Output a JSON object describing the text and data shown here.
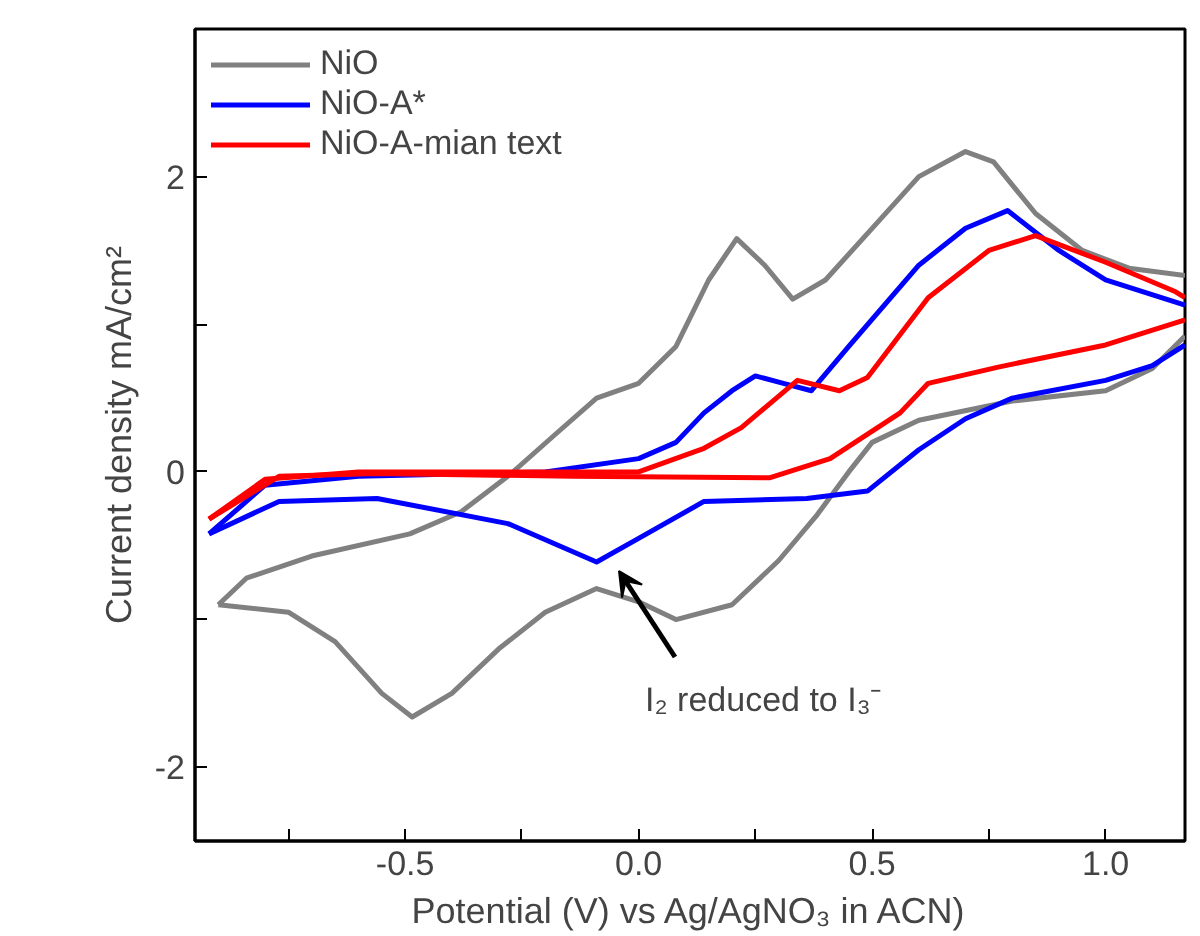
{
  "chart_data": {
    "type": "line",
    "xlabel": "Potential (V) vs Ag/AgNO₃ in ACN)",
    "ylabel": "Current density mA/cm²",
    "xlim": [
      -0.95,
      1.17
    ],
    "xticks": [
      {
        "value": -0.75,
        "label": null
      },
      -0.5,
      {
        "value": -0.25,
        "label": null
      },
      {
        "value": 0,
        "label": "0.0"
      },
      {
        "value": 0.25,
        "label": null
      },
      0.5,
      {
        "value": 0.75,
        "label": null
      },
      {
        "value": 1,
        "label": "1.0"
      }
    ],
    "ylim": [
      -2.5,
      3
    ],
    "yticks": [
      -2,
      {
        "value": -1,
        "label": null
      },
      0,
      {
        "value": 1,
        "label": null
      },
      2
    ],
    "legend": "top left",
    "line_style": "solid",
    "annotations": [
      "I₂ reduced to I₃⁻"
    ],
    "series": [
      {
        "name": "NiO",
        "color": "#808080",
        "x": [
          -0.9,
          -0.84,
          -0.7,
          -0.49,
          -0.38,
          -0.28,
          -0.18,
          -0.09,
          0.0,
          0.08,
          0.15,
          0.21,
          0.27,
          0.33,
          0.4,
          0.5,
          0.6,
          0.7,
          0.76,
          0.85,
          0.95,
          1.05,
          1.17
        ],
        "values": [
          -0.9,
          -0.72,
          -0.57,
          -0.42,
          -0.27,
          -0.03,
          0.25,
          0.5,
          0.6,
          0.85,
          1.3,
          1.58,
          1.4,
          1.17,
          1.3,
          1.65,
          2.0,
          2.17,
          2.1,
          1.75,
          1.5,
          1.38,
          1.33
        ]
      },
      {
        "color": "#808080",
        "x": [
          -0.9,
          -0.75,
          -0.65,
          -0.55,
          -0.485,
          -0.4,
          -0.3,
          -0.2,
          -0.09,
          0.0,
          0.08,
          0.2,
          0.3,
          0.38,
          0.45,
          0.5,
          0.6,
          0.8,
          1.0,
          1.1,
          1.17
        ],
        "values": [
          -0.9,
          -0.95,
          -1.15,
          -1.5,
          -1.66,
          -1.5,
          -1.2,
          -0.95,
          -0.79,
          -0.88,
          -1.0,
          -0.9,
          -0.6,
          -0.3,
          0.0,
          0.2,
          0.35,
          0.48,
          0.55,
          0.7,
          0.92
        ]
      },
      {
        "name": "NiO-A*",
        "color": "#0000ff",
        "x": [
          -0.92,
          -0.8,
          -0.6,
          -0.2,
          0.0,
          0.08,
          0.14,
          0.2,
          0.25,
          0.31,
          0.37,
          0.45,
          0.6,
          0.7,
          0.79,
          0.9,
          1.0,
          1.17
        ],
        "values": [
          -0.42,
          -0.09,
          -0.03,
          0.0,
          0.09,
          0.2,
          0.4,
          0.55,
          0.65,
          0.6,
          0.55,
          0.85,
          1.4,
          1.65,
          1.77,
          1.5,
          1.3,
          1.13
        ]
      },
      {
        "color": "#0000ff",
        "x": [
          -0.92,
          -0.77,
          -0.56,
          -0.28,
          -0.09,
          0.0,
          0.14,
          0.36,
          0.49,
          0.6,
          0.7,
          0.8,
          1.0,
          1.1,
          1.17
        ],
        "values": [
          -0.42,
          -0.2,
          -0.18,
          -0.35,
          -0.61,
          -0.45,
          -0.2,
          -0.18,
          -0.13,
          0.15,
          0.36,
          0.5,
          0.62,
          0.72,
          0.86
        ]
      },
      {
        "name": "NiO-A-mian text",
        "color": "#ff0000",
        "x": [
          -0.92,
          -0.8,
          -0.6,
          0.0,
          0.14,
          0.22,
          0.34,
          0.43,
          0.49,
          0.62,
          0.75,
          0.85,
          1.0,
          1.15,
          1.17
        ],
        "values": [
          -0.32,
          -0.05,
          0.0,
          0.0,
          0.16,
          0.3,
          0.62,
          0.55,
          0.64,
          1.18,
          1.5,
          1.6,
          1.42,
          1.22,
          1.18
        ]
      },
      {
        "color": "#ff0000",
        "x": [
          -0.92,
          -0.77,
          -0.56,
          -0.14,
          0.28,
          0.41,
          0.56,
          0.62,
          0.77,
          1.0,
          1.17
        ],
        "values": [
          -0.32,
          -0.03,
          -0.01,
          -0.03,
          -0.04,
          0.09,
          0.4,
          0.6,
          0.71,
          0.86,
          1.03
        ]
      }
    ]
  }
}
